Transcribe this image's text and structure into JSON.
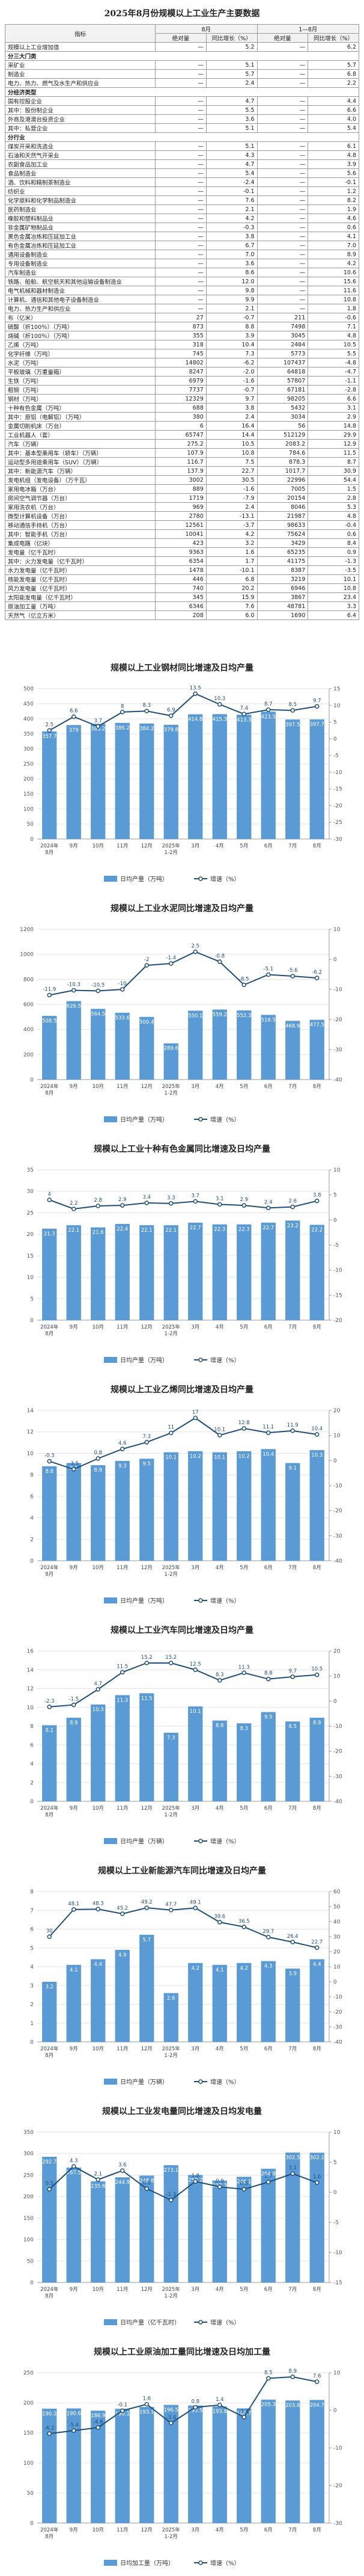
{
  "table": {
    "title": "2025年8月份规模以上工业生产主要数据",
    "header": [
      "指标",
      "8月",
      "1—8月"
    ],
    "subheader": [
      "绝对量",
      "同比增长（%）",
      "绝对量",
      "同比增长（%）"
    ],
    "rows": [
      [
        "规模以上工业增加值",
        "—",
        "5.2",
        "—",
        "6.2"
      ],
      [
        "分三大门类"
      ],
      [
        "采矿业",
        "—",
        "5.1",
        "—",
        "5.7"
      ],
      [
        "制造业",
        "—",
        "5.7",
        "—",
        "6.8"
      ],
      [
        "电力、热力、燃气及水生产和供应业",
        "—",
        "2.4",
        "—",
        "2.2"
      ],
      [
        "分经济类型"
      ],
      [
        "国有控股企业",
        "—",
        "4.7",
        "—",
        "4.4"
      ],
      [
        "其中：股份制企业",
        "—",
        "5.5",
        "—",
        "6.6"
      ],
      [
        "外商及港澳台投资企业",
        "—",
        "3.6",
        "—",
        "4.0"
      ],
      [
        "其中：私营企业",
        "—",
        "5.1",
        "—",
        "5.4"
      ],
      [
        "分行业"
      ],
      [
        "煤炭开采和洗选业",
        "—",
        "5.1",
        "—",
        "6.1"
      ],
      [
        "石油和天然气开采业",
        "—",
        "4.3",
        "—",
        "4.8"
      ],
      [
        "农副食品加工业",
        "—",
        "4.7",
        "—",
        "3.9"
      ],
      [
        "食品制造业",
        "—",
        "5.4",
        "—",
        "5.6"
      ],
      [
        "酒、饮料和精制茶制造业",
        "—",
        "-2.4",
        "—",
        "-0.1"
      ],
      [
        "纺织业",
        "—",
        "-0.1",
        "—",
        "1.2"
      ],
      [
        "化学原料和化学制品制造业",
        "—",
        "7.6",
        "—",
        "8.2"
      ],
      [
        "医药制造业",
        "—",
        "2.1",
        "—",
        "1.9"
      ],
      [
        "橡胶和塑料制品业",
        "—",
        "4.2",
        "—",
        "4.6"
      ],
      [
        "非金属矿物制品业",
        "—",
        "-0.3",
        "—",
        "0.6"
      ],
      [
        "黑色金属冶炼和压延加工业",
        "—",
        "3.8",
        "—",
        "4.1"
      ],
      [
        "有色金属冶炼和压延加工业",
        "—",
        "6.7",
        "—",
        "7.0"
      ],
      [
        "通用设备制造业",
        "—",
        "7.0",
        "—",
        "8.9"
      ],
      [
        "专用设备制造业",
        "—",
        "3.6",
        "—",
        "4.2"
      ],
      [
        "汽车制造业",
        "—",
        "8.6",
        "—",
        "10.6"
      ],
      [
        "铁路、船舶、航空航天和其他运输设备制造业",
        "—",
        "12.0",
        "—",
        "15.6"
      ],
      [
        "电气机械和器材制造业",
        "—",
        "9.8",
        "—",
        "11.6"
      ],
      [
        "计算机、通信和其他电子设备制造业",
        "—",
        "9.9",
        "—",
        "10.8"
      ],
      [
        "电力、热力生产和供应业",
        "—",
        "2.1",
        "—",
        "1.8"
      ],
      [
        "布（亿米）",
        "27",
        "-0.7",
        "211",
        "-0.6"
      ],
      [
        "硫酸（折100％）（万吨）",
        "873",
        "8.8",
        "7498",
        "7.1"
      ],
      [
        "烧碱（折100％）（万吨）",
        "355",
        "3.9",
        "3045",
        "4.8"
      ],
      [
        "乙烯（万吨）",
        "318",
        "10.4",
        "2484",
        "10.5"
      ],
      [
        "化学纤维（万吨）",
        "745",
        "7.3",
        "5773",
        "5.5"
      ],
      [
        "水泥（万吨）",
        "14802",
        "-6.2",
        "107437",
        "-4.8"
      ],
      [
        "平板玻璃（万重量箱）",
        "8247",
        "-2.0",
        "64818",
        "-4.7"
      ],
      [
        "生铁（万吨）",
        "6979",
        "-1.6",
        "57807",
        "-1.1"
      ],
      [
        "粗钢（万吨）",
        "7737",
        "-0.7",
        "67181",
        "-2.8"
      ],
      [
        "钢材（万吨）",
        "12329",
        "9.7",
        "98205",
        "6.6"
      ],
      [
        "十种有色金属（万吨）",
        "688",
        "3.8",
        "5432",
        "3.1"
      ],
      [
        "其中：原铝（电解铝）（万吨）",
        "380",
        "2.4",
        "3034",
        "2.9"
      ],
      [
        "金属切削机床（万台）",
        "6",
        "16.4",
        "56",
        "14.8"
      ],
      [
        "工业机器人（套）",
        "65747",
        "14.4",
        "512129",
        "29.9"
      ],
      [
        "汽车（万辆）",
        "275.2",
        "10.5",
        "2083.2",
        "12.9"
      ],
      [
        "其中：基本型乘用车（轿车）（万辆）",
        "107.9",
        "10.8",
        "784.6",
        "11.5"
      ],
      [
        "运动型多用途乘用车（SUV）（万辆）",
        "116.7",
        "7.5",
        "878.3",
        "8.7"
      ],
      [
        "其中：新能源汽车（万辆）",
        "137.9",
        "22.7",
        "1017.7",
        "30.9"
      ],
      [
        "发电机组（发电设备）（万千瓦）",
        "3002",
        "30.5",
        "22996",
        "54.4"
      ],
      [
        "家用电冰箱（万台）",
        "889",
        "-1.6",
        "7005",
        "1.5"
      ],
      [
        "房间空气调节器（万台）",
        "1719",
        "-7.9",
        "20154",
        "2.8"
      ],
      [
        "家用洗衣机（万台）",
        "969",
        "2.4",
        "8046",
        "5.3"
      ],
      [
        "微型计算机设备（万台）",
        "2780",
        "-13.1",
        "21987",
        "4.8"
      ],
      [
        "移动通信手持机（万台）",
        "12561",
        "-3.7",
        "98633",
        "-0.4"
      ],
      [
        "其中：智能手机（万台）",
        "10041",
        "4.2",
        "75624",
        "0.6"
      ],
      [
        "集成电路（亿块）",
        "423",
        "3.2",
        "3429",
        "8.4"
      ],
      [
        "发电量（亿千瓦时）",
        "9363",
        "1.6",
        "65235",
        "0.9"
      ],
      [
        "其中：火力发电量（亿千瓦时）",
        "6354",
        "1.7",
        "41175",
        "-1.3"
      ],
      [
        "水力发电量（亿千瓦时）",
        "1478",
        "-10.1",
        "8387",
        "-3.5"
      ],
      [
        "核能发电量（亿千瓦时）",
        "446",
        "6.8",
        "3219",
        "10.1"
      ],
      [
        "风力发电量（亿千瓦时）",
        "740",
        "20.2",
        "6946",
        "10.8"
      ],
      [
        "太阳能发电量（亿千瓦时）",
        "345",
        "15.9",
        "3867",
        "23.4"
      ],
      [
        "原油加工量（万吨）",
        "6346",
        "7.6",
        "48781",
        "3.3"
      ],
      [
        "天然气（亿立方米）",
        "208",
        "6.0",
        "1690",
        "6.4"
      ]
    ]
  },
  "chart_data": [
    {
      "type": "combo",
      "title": "规模以上工业钢材同比增速及日均产量",
      "categories": [
        "2024年8月",
        "9月",
        "10月",
        "11月",
        "12月",
        "2025年1-2月",
        "3月",
        "4月",
        "5月",
        "6月",
        "7月",
        "8月"
      ],
      "series": [
        {
          "name": "日均产量（万吨）",
          "color": "#5b9bd5",
          "values": [
            357.7,
            379.0,
            383.2,
            386.2,
            384.2,
            379.8,
            414.8,
            415.3,
            413.3,
            423.5,
            397.5,
            397.7
          ]
        },
        {
          "name": "增速（%）",
          "color": "#1f4e79",
          "axis": "y2",
          "values": [
            2.5,
            6.6,
            3.7,
            8.0,
            8.3,
            6.9,
            13.5,
            10.3,
            7.4,
            8.7,
            8.5,
            9.7
          ]
        }
      ],
      "ylim": [
        0,
        500
      ],
      "yticks": [
        0,
        50,
        100,
        150,
        200,
        250,
        300,
        350,
        400,
        450,
        500
      ],
      "y2lim": [
        -30,
        15
      ],
      "y2ticks": [
        -30,
        -25,
        -20,
        -15,
        -10,
        -5,
        0,
        5,
        10,
        15
      ],
      "grid": true
    },
    {
      "type": "combo",
      "title": "规模以上工业水泥同比增速及日均产量",
      "categories": [
        "2024年8月",
        "9月",
        "10月",
        "11月",
        "12月",
        "2025年1-2月",
        "3月",
        "4月",
        "5月",
        "6月",
        "7月",
        "8月"
      ],
      "series": [
        {
          "name": "日均产量（万吨）",
          "color": "#5b9bd5",
          "values": [
            508.5,
            626.5,
            564.5,
            533.6,
            500.4,
            289.6,
            550.1,
            559.2,
            552.3,
            516.5,
            468.9,
            477.5
          ]
        },
        {
          "name": "增速（%）",
          "color": "#1f4e79",
          "axis": "y2",
          "values": [
            -11.9,
            -10.3,
            -10.5,
            -10.0,
            -2.0,
            -1.4,
            2.5,
            -0.8,
            -8.5,
            -5.1,
            -5.6,
            -6.2
          ]
        }
      ],
      "ylim": [
        0,
        1200
      ],
      "yticks": [
        0,
        200,
        400,
        600,
        800,
        1000,
        1200
      ],
      "y2lim": [
        -40,
        10
      ],
      "y2ticks": [
        -40,
        -30,
        -20,
        -10,
        0,
        10
      ],
      "grid": true
    },
    {
      "type": "combo",
      "title": "规模以上工业十种有色金属同比增速及日均产量",
      "categories": [
        "2024年8月",
        "9月",
        "10月",
        "11月",
        "12月",
        "2025年1-2月",
        "3月",
        "4月",
        "5月",
        "6月",
        "7月",
        "8月"
      ],
      "series": [
        {
          "name": "日均产量（万吨）",
          "color": "#5b9bd5",
          "values": [
            21.3,
            22.1,
            21.6,
            22.4,
            22.1,
            22.1,
            22.7,
            22.3,
            22.3,
            22.7,
            23.2,
            22.2
          ]
        },
        {
          "name": "增速（%）",
          "color": "#1f4e79",
          "axis": "y2",
          "values": [
            4.0,
            2.2,
            2.8,
            2.9,
            3.4,
            3.3,
            3.7,
            3.1,
            2.9,
            2.4,
            2.6,
            3.8
          ]
        }
      ],
      "ylim": [
        0,
        35
      ],
      "yticks": [
        0,
        5,
        10,
        15,
        20,
        25,
        30,
        35
      ],
      "y2lim": [
        -20,
        10
      ],
      "y2ticks": [
        -20,
        -15,
        -10,
        -5,
        0,
        5,
        10
      ],
      "grid": true
    },
    {
      "type": "combo",
      "title": "规模以上工业乙烯同比增速及日均产量",
      "categories": [
        "2024年8月",
        "9月",
        "10月",
        "11月",
        "12月",
        "2025年1-2月",
        "3月",
        "4月",
        "5月",
        "6月",
        "7月",
        "8月"
      ],
      "series": [
        {
          "name": "日均产量（万吨）",
          "color": "#5b9bd5",
          "values": [
            8.8,
            9.1,
            8.9,
            9.3,
            9.5,
            10.1,
            10.2,
            10.1,
            10.2,
            10.4,
            9.1,
            10.3
          ]
        },
        {
          "name": "增速（%）",
          "color": "#1f4e79",
          "axis": "y2",
          "values": [
            -0.3,
            -3.5,
            0.8,
            4.6,
            7.3,
            11.0,
            17.0,
            10.1,
            12.8,
            11.1,
            11.9,
            10.4
          ]
        }
      ],
      "ylim": [
        0,
        14
      ],
      "yticks": [
        0,
        2,
        4,
        6,
        8,
        10,
        12,
        14
      ],
      "y2lim": [
        -40,
        20
      ],
      "y2ticks": [
        -40,
        -30,
        -20,
        -10,
        0,
        10,
        20
      ],
      "grid": true
    },
    {
      "type": "combo",
      "title": "规模以上工业汽车同比增速及日均产量",
      "categories": [
        "2024年8月",
        "9月",
        "10月",
        "11月",
        "12月",
        "2025年1-2月",
        "3月",
        "4月",
        "5月",
        "6月",
        "7月",
        "8月"
      ],
      "series": [
        {
          "name": "日均产量（万辆）",
          "color": "#5b9bd5",
          "values": [
            8.1,
            8.9,
            10.3,
            11.3,
            11.5,
            7.3,
            10.1,
            8.6,
            8.3,
            9.5,
            8.5,
            8.9
          ]
        },
        {
          "name": "增速（%）",
          "color": "#1f4e79",
          "axis": "y2",
          "values": [
            -2.3,
            -1.5,
            4.7,
            11.5,
            15.2,
            15.2,
            12.5,
            8.3,
            11.3,
            8.8,
            9.7,
            10.5
          ]
        }
      ],
      "ylim": [
        0,
        16
      ],
      "yticks": [
        0,
        2,
        4,
        6,
        8,
        10,
        12,
        14,
        16
      ],
      "y2lim": [
        -40,
        20
      ],
      "y2ticks": [
        -40,
        -30,
        -20,
        -10,
        0,
        10,
        20
      ],
      "grid": true
    },
    {
      "type": "combo",
      "title": "规模以上工业新能源汽车同比增速及日均产量",
      "categories": [
        "2024年8月",
        "9月",
        "10月",
        "11月",
        "12月",
        "2025年1-2月",
        "3月",
        "4月",
        "5月",
        "6月",
        "7月",
        "8月"
      ],
      "series": [
        {
          "name": "日均产量（万辆）",
          "color": "#5b9bd5",
          "values": [
            3.2,
            4.1,
            4.4,
            4.9,
            5.7,
            2.6,
            4.2,
            4.1,
            4.2,
            4.3,
            3.9,
            4.4
          ]
        },
        {
          "name": "增速（%）",
          "color": "#1f4e79",
          "axis": "y2",
          "values": [
            30.0,
            48.1,
            48.3,
            45.2,
            49.2,
            47.7,
            49.1,
            39.6,
            36.5,
            29.7,
            26.4,
            22.7
          ]
        }
      ],
      "ylim": [
        0,
        8
      ],
      "yticks": [
        0,
        1,
        2,
        3,
        4,
        5,
        6,
        7,
        8
      ],
      "y2lim": [
        -40,
        60
      ],
      "y2ticks": [
        -40,
        -30,
        -20,
        -10,
        0,
        10,
        20,
        30,
        40,
        50,
        60
      ],
      "grid": true
    },
    {
      "type": "combo",
      "title": "规模以上工业发电量同比增速及日均发电量",
      "categories": [
        "2024年8月",
        "9月",
        "10月",
        "11月",
        "12月",
        "2025年1-2月",
        "3月",
        "4月",
        "5月",
        "6月",
        "7月",
        "8月"
      ],
      "series": [
        {
          "name": "日均产量（亿千瓦时）",
          "color": "#5b9bd5",
          "values": [
            292.7,
            267.5,
            235.6,
            244.9,
            248.8,
            273.1,
            250.2,
            237.3,
            246.1,
            264.8,
            302.5,
            302.1
          ]
        },
        {
          "name": "增速（%）",
          "color": "#1f4e79",
          "axis": "y2",
          "values": [
            0.5,
            4.3,
            2.1,
            3.6,
            0.6,
            -1.3,
            1.8,
            0.9,
            0.5,
            1.7,
            3.1,
            1.6
          ]
        }
      ],
      "ylim": [
        0,
        350
      ],
      "yticks": [
        0,
        50,
        100,
        150,
        200,
        250,
        300,
        350
      ],
      "y2lim": [
        -15,
        10
      ],
      "y2ticks": [
        -15,
        -10,
        -5,
        0,
        5,
        10
      ],
      "grid": true
    },
    {
      "type": "combo",
      "title": "规模以上工业原油加工量同比增速及日均加工量",
      "categories": [
        "2024年8月",
        "9月",
        "10月",
        "11月",
        "12月",
        "2025年1-2月",
        "3月",
        "4月",
        "5月",
        "6月",
        "7月",
        "8月"
      ],
      "series": [
        {
          "name": "日均加工量（万吨）",
          "color": "#5b9bd5",
          "values": [
            190.2,
            190.6,
            186.9,
            190.1,
            193.1,
            196.5,
            195.5,
            193.8,
            190.7,
            205.3,
            203.8,
            204.7
          ]
        },
        {
          "name": "增速（%）",
          "color": "#1f4e79",
          "axis": "y2",
          "values": [
            -6.2,
            -5.4,
            -4.6,
            -0.1,
            1.6,
            -3.4,
            0.8,
            1.4,
            -1.8,
            8.5,
            8.9,
            7.6
          ]
        }
      ],
      "ylim": [
        0,
        250
      ],
      "yticks": [
        0,
        50,
        100,
        150,
        200,
        250
      ],
      "y2lim": [
        -30,
        10
      ],
      "y2ticks": [
        -30,
        -20,
        -10,
        0,
        10
      ],
      "grid": true
    }
  ]
}
